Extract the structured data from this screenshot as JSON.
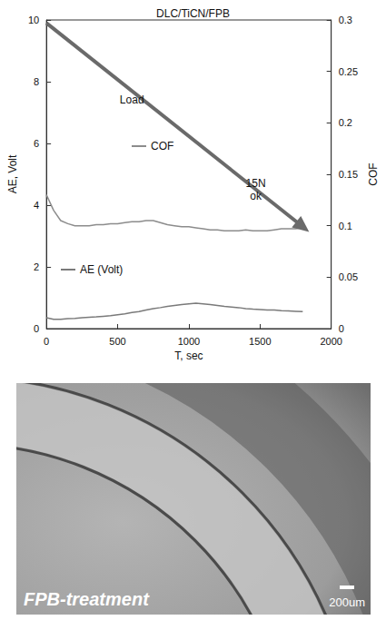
{
  "chart_data": {
    "type": "line",
    "title": "DLC/TiCN/FPB",
    "x_label": "T, sec",
    "y_label": "AE, Volt",
    "y2_label": "COF",
    "xlim": [
      0,
      2000
    ],
    "xticks": [
      0,
      500,
      1000,
      1500,
      2000
    ],
    "ylim": [
      0,
      10
    ],
    "yticks": [
      0,
      2,
      4,
      6,
      8,
      10
    ],
    "y2lim": [
      0,
      0.3
    ],
    "y2ticks": [
      0,
      0.05,
      0.1,
      0.15,
      0.2,
      0.25,
      0.3
    ],
    "grid": false,
    "legend": "inside",
    "x": [
      0,
      50,
      100,
      150,
      200,
      250,
      300,
      350,
      400,
      450,
      500,
      550,
      600,
      650,
      700,
      750,
      800,
      850,
      900,
      950,
      1000,
      1050,
      1100,
      1150,
      1200,
      1250,
      1300,
      1350,
      1400,
      1450,
      1500,
      1550,
      1600,
      1650,
      1700,
      1750,
      1800
    ],
    "series": [
      {
        "name": "COF",
        "color": "#8c8c8c",
        "axis": "y2",
        "type": "line",
        "values": [
          0.13,
          0.115,
          0.105,
          0.102,
          0.1,
          0.1,
          0.1,
          0.101,
          0.101,
          0.102,
          0.102,
          0.103,
          0.104,
          0.104,
          0.105,
          0.105,
          0.103,
          0.101,
          0.1,
          0.099,
          0.099,
          0.098,
          0.097,
          0.096,
          0.096,
          0.095,
          0.095,
          0.095,
          0.096,
          0.095,
          0.095,
          0.095,
          0.096,
          0.097,
          0.097,
          0.097,
          0.098
        ]
      },
      {
        "name": "AE (Volt)",
        "color": "#7a7a7a",
        "axis": "y",
        "type": "line",
        "values": [
          0.35,
          0.3,
          0.3,
          0.32,
          0.33,
          0.35,
          0.37,
          0.38,
          0.4,
          0.42,
          0.45,
          0.48,
          0.52,
          0.55,
          0.6,
          0.65,
          0.68,
          0.72,
          0.75,
          0.78,
          0.8,
          0.82,
          0.8,
          0.78,
          0.75,
          0.72,
          0.7,
          0.68,
          0.65,
          0.63,
          0.62,
          0.6,
          0.6,
          0.58,
          0.57,
          0.56,
          0.55
        ]
      }
    ],
    "arrow": {
      "name": "Load",
      "color": "#6a6a6a",
      "axis": "y",
      "type": "line",
      "marker": "arrow",
      "x": [
        0,
        1800
      ],
      "values": [
        9.9,
        3.3
      ]
    },
    "annotations": [
      {
        "text": "Load",
        "x": 600,
        "y": 7.4
      },
      {
        "text": "15N ok",
        "x": 1470,
        "y": 4.5
      }
    ]
  },
  "micrograph": {
    "caption": "FPB-treatment",
    "scale_bar": "200um"
  }
}
